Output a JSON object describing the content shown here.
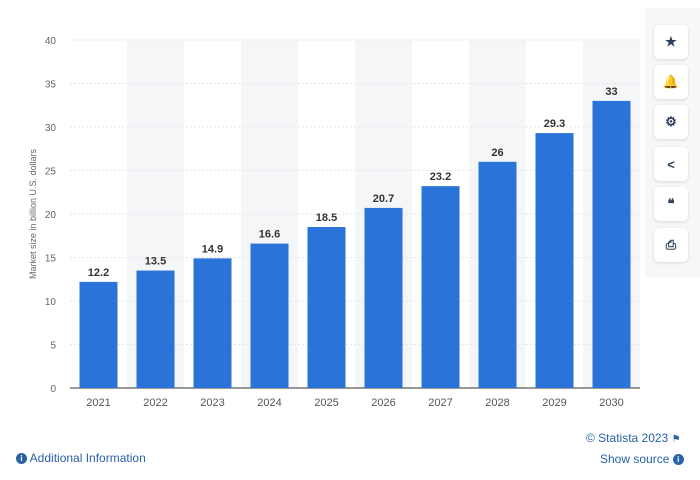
{
  "chart_data": {
    "type": "bar",
    "categories": [
      "2021",
      "2022",
      "2023",
      "2024",
      "2025",
      "2026",
      "2027",
      "2028",
      "2029",
      "2030"
    ],
    "values": [
      12.2,
      13.5,
      14.9,
      16.6,
      18.5,
      20.7,
      23.2,
      26,
      29.3,
      33
    ],
    "value_labels": [
      "12.2",
      "13.5",
      "14.9",
      "16.6",
      "18.5",
      "20.7",
      "23.2",
      "26",
      "29.3",
      "33"
    ],
    "ylabel": "Market size in billion U.S. dollars",
    "ylim": [
      0,
      40
    ],
    "yticks": [
      "0",
      "5",
      "10",
      "15",
      "20",
      "25",
      "30",
      "35",
      "40"
    ],
    "grid": true,
    "bar_color": "#2a74d9"
  },
  "footer": {
    "copyright": "© Statista 2023",
    "additional_info": "Additional Information",
    "show_source": "Show source"
  },
  "toolbar": {
    "icons": [
      "star-icon",
      "bell-icon",
      "gear-icon",
      "share-icon",
      "quote-icon",
      "print-icon"
    ],
    "glyphs": [
      "★",
      "🔔",
      "⚙",
      "<",
      "❝",
      "⎙"
    ]
  }
}
